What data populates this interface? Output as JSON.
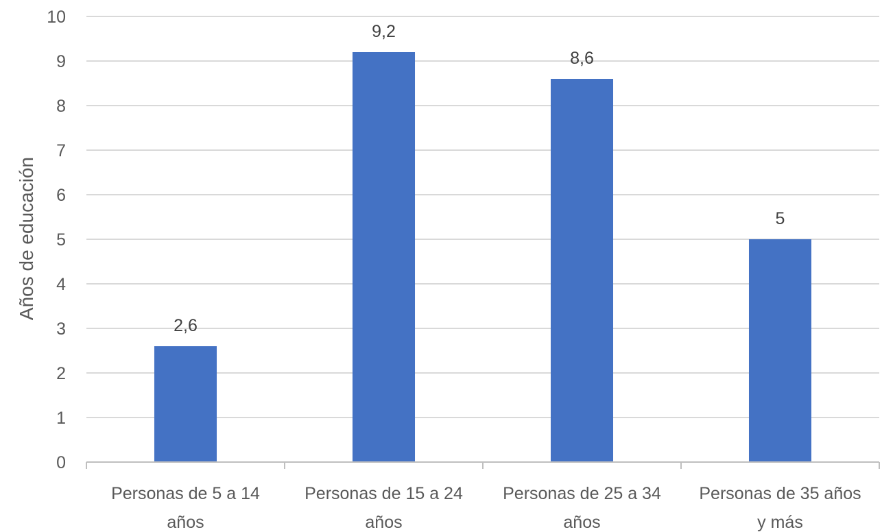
{
  "chart_data": {
    "type": "bar",
    "categories": [
      [
        "Personas de 5 a 14",
        "años"
      ],
      [
        "Personas de 15 a 24",
        "años"
      ],
      [
        "Personas de 25  a 34",
        "años"
      ],
      [
        "Personas de 35 años",
        "y más"
      ]
    ],
    "values": [
      2.6,
      9.2,
      8.6,
      5
    ],
    "data_labels": [
      "2,6",
      "9,2",
      "8,6",
      "5"
    ],
    "title": "",
    "xlabel": "",
    "ylabel": "Años de educación",
    "ylim": [
      0,
      10
    ],
    "yticks": [
      0,
      1,
      2,
      3,
      4,
      5,
      6,
      7,
      8,
      9,
      10
    ],
    "grid": true,
    "legend": "none",
    "colors": {
      "bar": "#4472C4",
      "grid": "#D9D9D9",
      "axis": "#BFBFBF"
    }
  }
}
